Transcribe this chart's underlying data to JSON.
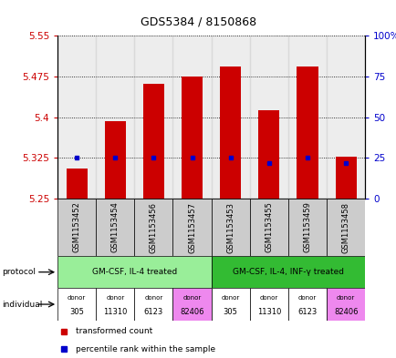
{
  "title": "GDS5384 / 8150868",
  "samples": [
    "GSM1153452",
    "GSM1153454",
    "GSM1153456",
    "GSM1153457",
    "GSM1153453",
    "GSM1153455",
    "GSM1153459",
    "GSM1153458"
  ],
  "bar_values": [
    5.305,
    5.393,
    5.462,
    5.475,
    5.493,
    5.413,
    5.493,
    5.328
  ],
  "percentile_values": [
    25,
    25,
    25,
    25,
    25,
    22,
    25,
    22
  ],
  "y_min": 5.25,
  "y_max": 5.55,
  "y_ticks": [
    5.25,
    5.325,
    5.4,
    5.475,
    5.55
  ],
  "y_right_ticks": [
    0,
    25,
    50,
    75,
    100
  ],
  "y_right_labels": [
    "0",
    "25",
    "50",
    "75",
    "100%"
  ],
  "bar_color": "#cc0000",
  "percentile_color": "#0000cc",
  "protocol_groups": [
    {
      "label": "GM-CSF, IL-4 treated",
      "span": [
        0,
        3
      ],
      "color": "#99ee99"
    },
    {
      "label": "GM-CSF, IL-4, INF-γ treated",
      "span": [
        4,
        7
      ],
      "color": "#33bb33"
    }
  ],
  "individual_donors": [
    "305",
    "11310",
    "6123",
    "82406",
    "305",
    "11310",
    "6123",
    "82406"
  ],
  "donor_colors": [
    "#ffffff",
    "#ffffff",
    "#ffffff",
    "#ee88ee",
    "#ffffff",
    "#ffffff",
    "#ffffff",
    "#ee88ee"
  ],
  "axis_label_color_left": "#cc0000",
  "axis_label_color_right": "#0000cc",
  "sample_bg_color": "#cccccc",
  "legend_bar_label": "transformed count",
  "legend_pct_label": "percentile rank within the sample"
}
